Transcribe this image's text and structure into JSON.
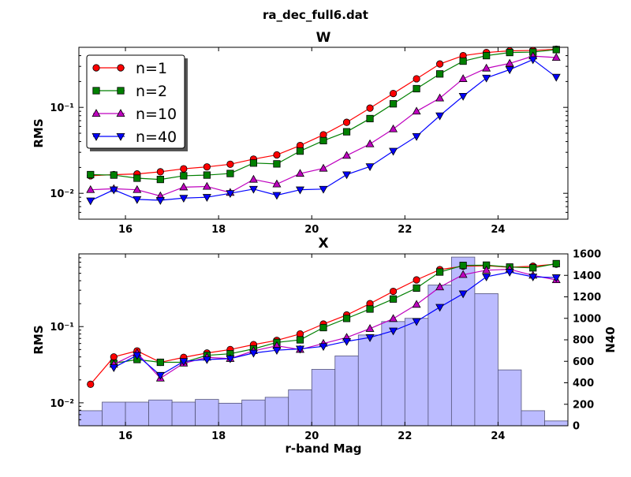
{
  "figure_title": "ra_dec_full6.dat",
  "chart_data": [
    {
      "type": "line",
      "title": "W",
      "xlabel": "X",
      "ylabel": "RMS",
      "yscale": "log",
      "xlim": [
        15.0,
        25.5
      ],
      "ylim": [
        0.005,
        0.5
      ],
      "xticks": [
        16,
        18,
        20,
        22,
        24
      ],
      "xtick_labels": [
        "16",
        "18",
        "20",
        "22",
        "24"
      ],
      "yticks": [
        0.01,
        0.1
      ],
      "ytick_labels": [
        "10⁻²",
        "10⁻¹"
      ],
      "legend": "upper-left",
      "x": [
        15.25,
        15.75,
        16.25,
        16.75,
        17.25,
        17.75,
        18.25,
        18.75,
        19.25,
        19.75,
        20.25,
        20.75,
        21.25,
        21.75,
        22.25,
        22.75,
        23.25,
        23.75,
        24.25,
        24.75,
        25.25
      ],
      "series": [
        {
          "name": "n=1",
          "color": "#ff0000",
          "marker": "circle",
          "values": [
            0.016,
            0.0165,
            0.0168,
            0.0178,
            0.0193,
            0.0203,
            0.0218,
            0.025,
            0.028,
            0.036,
            0.048,
            0.067,
            0.098,
            0.145,
            0.215,
            0.32,
            0.4,
            0.435,
            0.455,
            0.46,
            0.475
          ]
        },
        {
          "name": "n=2",
          "color": "#008000",
          "marker": "square",
          "values": [
            0.0165,
            0.0163,
            0.015,
            0.0145,
            0.016,
            0.0163,
            0.017,
            0.0225,
            0.022,
            0.031,
            0.041,
            0.052,
            0.074,
            0.11,
            0.165,
            0.245,
            0.345,
            0.4,
            0.435,
            0.44,
            0.47
          ]
        },
        {
          "name": "n=10",
          "color": "#bf00bf",
          "marker": "triangle-up",
          "values": [
            0.011,
            0.0113,
            0.011,
            0.0093,
            0.0118,
            0.012,
            0.0102,
            0.0145,
            0.0128,
            0.017,
            0.0195,
            0.0275,
            0.0375,
            0.056,
            0.09,
            0.128,
            0.215,
            0.285,
            0.325,
            0.395,
            0.38
          ]
        },
        {
          "name": "n=40",
          "color": "#0000ff",
          "marker": "triangle-down",
          "values": [
            0.0082,
            0.011,
            0.0085,
            0.0083,
            0.0088,
            0.009,
            0.01,
            0.0112,
            0.0095,
            0.011,
            0.0112,
            0.0165,
            0.0205,
            0.031,
            0.046,
            0.08,
            0.135,
            0.22,
            0.275,
            0.36,
            0.225
          ]
        }
      ]
    },
    {
      "type": "line",
      "title": "",
      "xlabel": "r-band Mag",
      "ylabel": "RMS",
      "y2label": "N40",
      "yscale": "log",
      "xlim": [
        15.0,
        25.5
      ],
      "ylim": [
        0.005,
        0.9
      ],
      "y2lim": [
        0,
        1600
      ],
      "xticks": [
        16,
        18,
        20,
        22,
        24
      ],
      "xtick_labels": [
        "16",
        "18",
        "20",
        "22",
        "24"
      ],
      "yticks": [
        0.01,
        0.1
      ],
      "ytick_labels": [
        "10⁻²",
        "10⁻¹"
      ],
      "y2ticks": [
        0,
        200,
        400,
        600,
        800,
        1000,
        1200,
        1400,
        1600
      ],
      "y2tick_labels": [
        "0",
        "200",
        "400",
        "600",
        "800",
        "1000",
        "1200",
        "1400",
        "1600"
      ],
      "x": [
        15.25,
        15.75,
        16.25,
        16.75,
        17.25,
        17.75,
        18.25,
        18.75,
        19.25,
        19.75,
        20.25,
        20.75,
        21.25,
        21.75,
        22.25,
        22.75,
        23.25,
        23.75,
        24.25,
        24.75,
        25.25
      ],
      "series": [
        {
          "name": "n=1",
          "color": "#ff0000",
          "marker": "circle",
          "values": [
            0.0175,
            0.04,
            0.048,
            0.034,
            0.0395,
            0.045,
            0.05,
            0.058,
            0.066,
            0.08,
            0.108,
            0.142,
            0.2,
            0.29,
            0.41,
            0.56,
            0.62,
            0.63,
            0.6,
            0.62,
            0.66
          ]
        },
        {
          "name": "n=2",
          "color": "#008000",
          "marker": "square",
          "values": [
            null,
            0.033,
            0.037,
            0.034,
            0.034,
            0.042,
            0.044,
            0.051,
            0.062,
            0.067,
            0.097,
            0.128,
            0.17,
            0.23,
            0.32,
            0.52,
            0.635,
            0.64,
            0.605,
            0.59,
            0.67
          ]
        },
        {
          "name": "n=10",
          "color": "#bf00bf",
          "marker": "triangle-up",
          "values": [
            null,
            0.032,
            0.045,
            0.021,
            0.033,
            0.0395,
            0.038,
            0.048,
            0.056,
            0.05,
            0.06,
            0.072,
            0.094,
            0.127,
            0.195,
            0.33,
            0.48,
            0.55,
            0.565,
            0.47,
            0.41
          ]
        },
        {
          "name": "n=40",
          "color": "#0000ff",
          "marker": "triangle-down",
          "values": [
            null,
            0.029,
            0.042,
            0.023,
            0.035,
            0.037,
            0.038,
            0.045,
            0.049,
            0.051,
            0.055,
            0.064,
            0.072,
            0.088,
            0.117,
            0.18,
            0.27,
            0.45,
            0.52,
            0.45,
            0.44
          ]
        }
      ],
      "histogram": {
        "axis": "y2",
        "color": "#bbbbff",
        "bin_edges": [
          15.0,
          15.5,
          16.0,
          16.5,
          17.0,
          17.5,
          18.0,
          18.5,
          19.0,
          19.5,
          20.0,
          20.5,
          21.0,
          21.5,
          22.0,
          22.5,
          23.0,
          23.5,
          24.0,
          24.5,
          25.0,
          25.5
        ],
        "counts": [
          140,
          220,
          220,
          240,
          220,
          245,
          210,
          240,
          265,
          335,
          525,
          650,
          845,
          970,
          1000,
          1310,
          1570,
          1230,
          520,
          140,
          45
        ]
      }
    }
  ]
}
